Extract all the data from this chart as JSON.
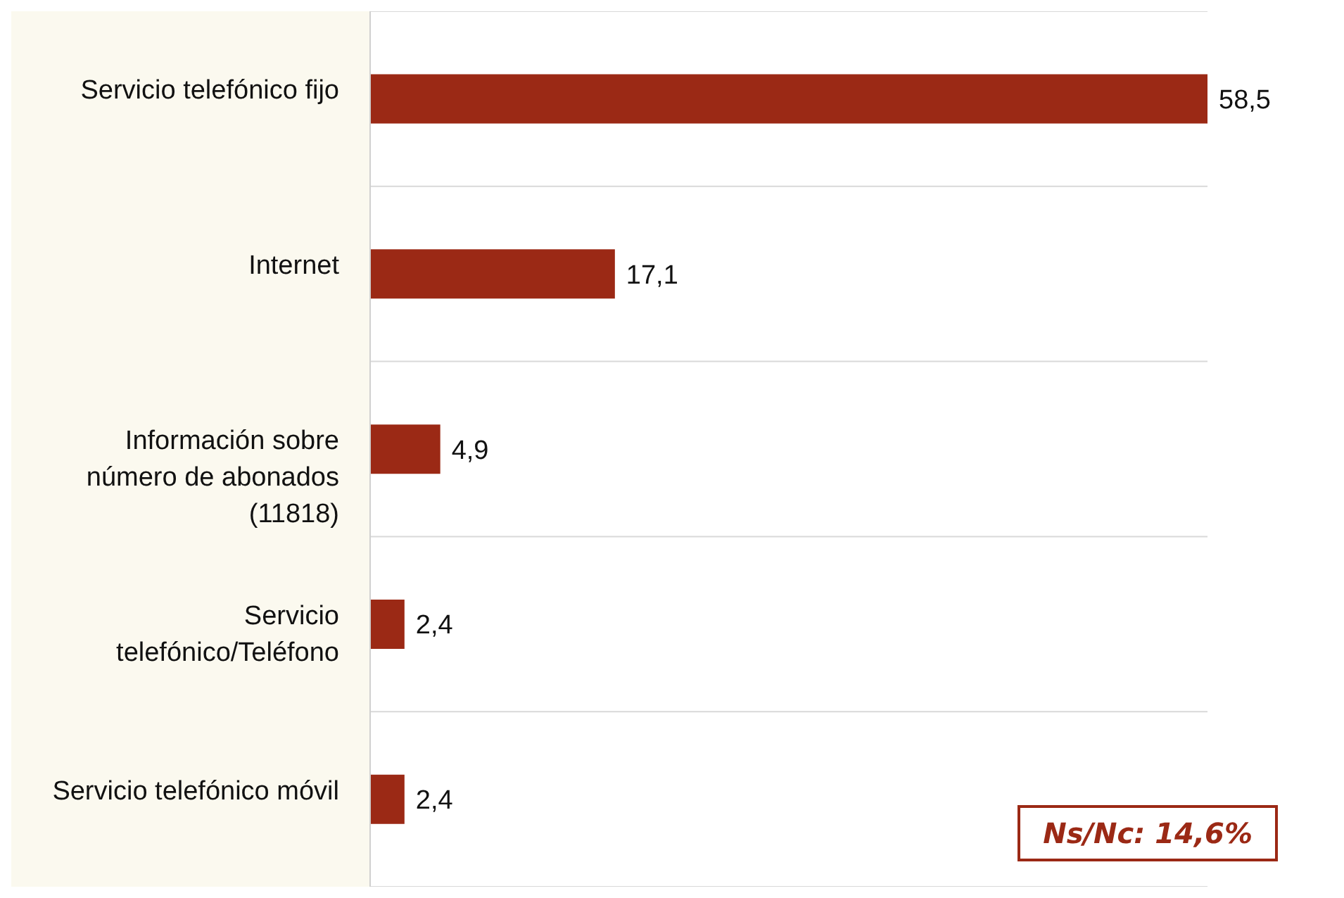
{
  "chart_data": {
    "type": "bar",
    "orientation": "horizontal",
    "categories": [
      "Servicio telefónico fijo",
      "Internet",
      "Información sobre número de abonados (11818)",
      "Servicio telefónico/Teléfono",
      "Servicio telefónico móvil"
    ],
    "values": [
      58.5,
      17.1,
      4.9,
      2.4,
      2.4
    ],
    "value_labels": [
      "58,5",
      "17,1",
      "4,9",
      "2,4",
      "2,4"
    ],
    "color": "#9b2915",
    "grid": "y",
    "annotations": [
      "Ns/Nc: 14,6%"
    ]
  }
}
